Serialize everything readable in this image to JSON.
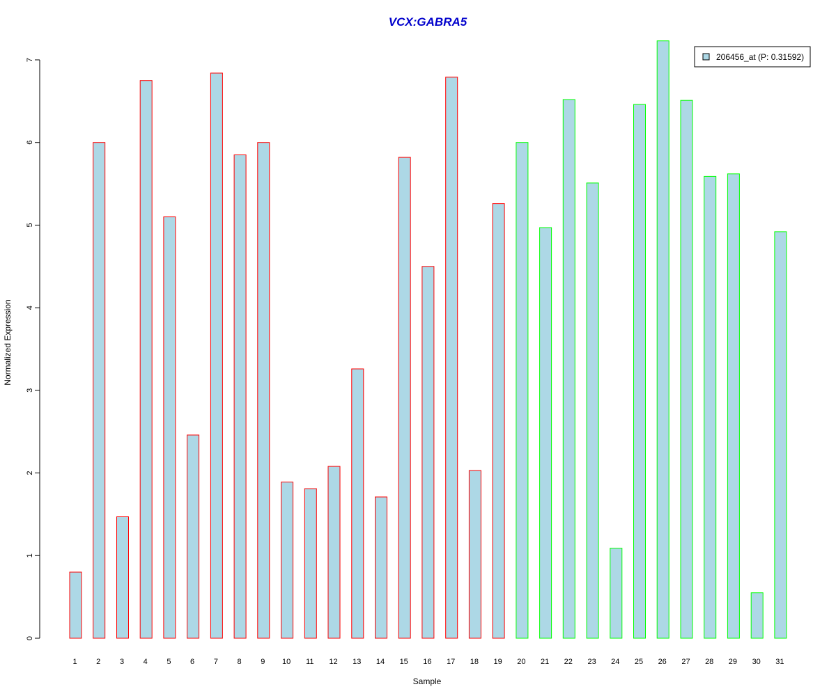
{
  "chart_data": {
    "type": "bar",
    "title": "VCX:GABRA5",
    "xlabel": "Sample",
    "ylabel": "Normalized Expression",
    "ylim": [
      0,
      7.2
    ],
    "yticks": [
      0,
      1,
      2,
      3,
      4,
      5,
      6,
      7
    ],
    "categories": [
      "1",
      "2",
      "3",
      "4",
      "5",
      "6",
      "7",
      "8",
      "9",
      "10",
      "11",
      "12",
      "13",
      "14",
      "15",
      "16",
      "17",
      "18",
      "19",
      "20",
      "21",
      "22",
      "23",
      "24",
      "25",
      "26",
      "27",
      "28",
      "29",
      "30",
      "31"
    ],
    "series": [
      {
        "name": "206456_at (P: 0.31592)",
        "values": [
          0.8,
          6.0,
          1.47,
          6.75,
          5.1,
          2.46,
          6.84,
          5.85,
          6.0,
          1.89,
          1.81,
          2.08,
          3.26,
          1.71,
          5.82,
          4.5,
          6.79,
          2.03,
          5.26,
          6.0,
          4.97,
          6.52,
          5.51,
          1.09,
          6.46,
          7.23,
          6.51,
          5.59,
          5.62,
          0.55,
          4.92
        ]
      }
    ],
    "groups": [
      {
        "samples": [
          1,
          19
        ],
        "border_color": "#ff0000"
      },
      {
        "samples": [
          20,
          31
        ],
        "border_color": "#00ff00"
      }
    ],
    "bar_fill": "#add8e6",
    "title_color": "#0000cc",
    "legend_position": "top-right",
    "grid": false
  }
}
